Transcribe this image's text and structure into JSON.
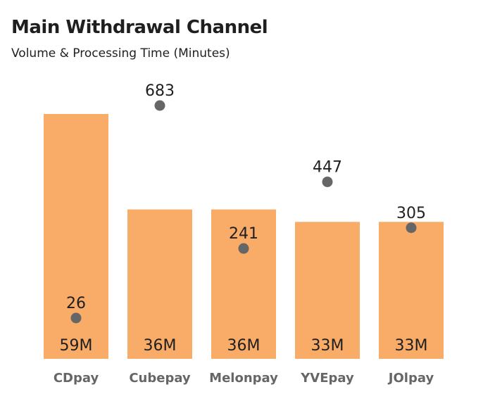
{
  "title": "Main Withdrawal Channel",
  "subtitle": "Volume & Processing Time (Minutes)",
  "colors": {
    "bar": "#F9AB68",
    "dot": "#666666",
    "text": "#1f1f1f"
  },
  "chart_data": {
    "type": "bar",
    "categories": [
      "CDpay",
      "Cubepay",
      "Melonpay",
      "YVEpay",
      "JOlpay"
    ],
    "series": [
      {
        "name": "",
        "values": [
          59,
          36,
          36,
          33,
          33
        ],
        "value_labels": [
          "59M",
          "36M",
          "36M",
          "33M",
          "33M"
        ]
      },
      {
        "name": "",
        "values": [
          26,
          683,
          241,
          447,
          305
        ],
        "value_labels": [
          "26",
          "683",
          "241",
          "447",
          "305"
        ]
      }
    ],
    "title": "Main Withdrawal Channel",
    "subtitle": "Volume & Processing Time (Minutes)",
    "xlabel": "",
    "ylabel": "",
    "ylim": [
      0,
      59
    ],
    "y2lim": [
      0,
      683
    ],
    "grid": false,
    "legend": "none"
  }
}
